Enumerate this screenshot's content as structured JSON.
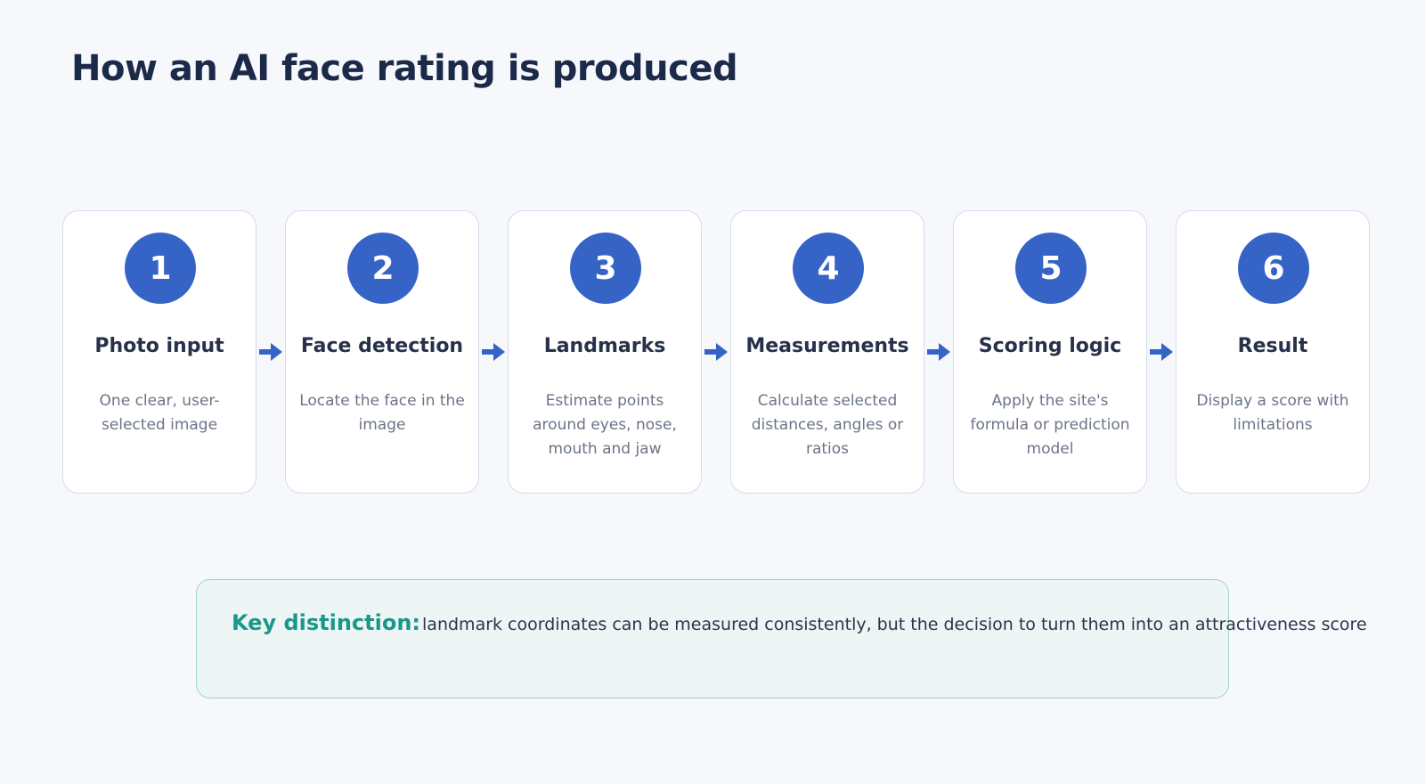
{
  "title": "How an AI face rating is produced",
  "steps": [
    {
      "number": "1",
      "title": "Photo input",
      "description": "One clear, user-selected image"
    },
    {
      "number": "2",
      "title": "Face detection",
      "description": "Locate the face in the image"
    },
    {
      "number": "3",
      "title": "Landmarks",
      "description": "Estimate points around eyes, nose, mouth and jaw"
    },
    {
      "number": "4",
      "title": "Measurements",
      "description": "Calculate selected distances, angles or ratios"
    },
    {
      "number": "5",
      "title": "Scoring logic",
      "description": "Apply the site's formula or prediction model"
    },
    {
      "number": "6",
      "title": "Result",
      "description": "Display a score with limitations"
    }
  ],
  "note": {
    "label": "Key distinction:",
    "text": "landmark coordinates can be measured consistently, but the decision to turn them into an attractiveness score"
  },
  "colors": {
    "badge": "#3563c6",
    "arrow": "#3563c6",
    "note_label": "#1b978a",
    "title": "#1c2a49"
  }
}
